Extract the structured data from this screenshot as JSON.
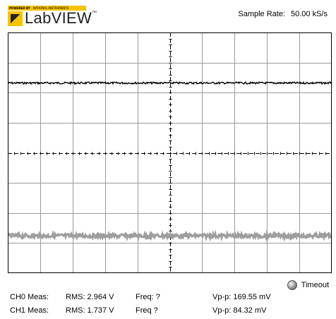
{
  "logo": {
    "powered_by": "POWERED BY",
    "company": "NATIONAL INSTRUMENTS",
    "product": "LabVIEW",
    "trademark": "™"
  },
  "sample_rate": {
    "label": "Sample Rate:",
    "value": "50.00 kS/s"
  },
  "graph": {
    "background": "#ffffff",
    "grid_color": "#9a9a9a",
    "center_line_color": "#000000",
    "trace_colors": {
      "ch0": "#000000",
      "ch1": "#9e9e9e"
    },
    "divisions": {
      "x": 10,
      "y": 8
    }
  },
  "chart_data": {
    "type": "line",
    "series": [
      {
        "level_fraction_from_top": 0.21,
        "noise_fraction": 0.004
      },
      {
        "level_fraction_from_top": 0.845,
        "noise_fraction": 0.008
      }
    ]
  },
  "timeout": {
    "label": "Timeout",
    "icon": "led-indicator-icon",
    "state": "off"
  },
  "measurements": [
    {
      "label": "CH0 Meas:",
      "rms": "RMS:  2.964 V",
      "freq": "Freq:  ?",
      "vpp": "Vp-p:  169.55 mV"
    },
    {
      "label": "CH1 Meas:",
      "rms": "RMS:  1.737 V",
      "freq": "Freq   ?",
      "vpp": "Vp-p:  84.32 mV"
    }
  ]
}
